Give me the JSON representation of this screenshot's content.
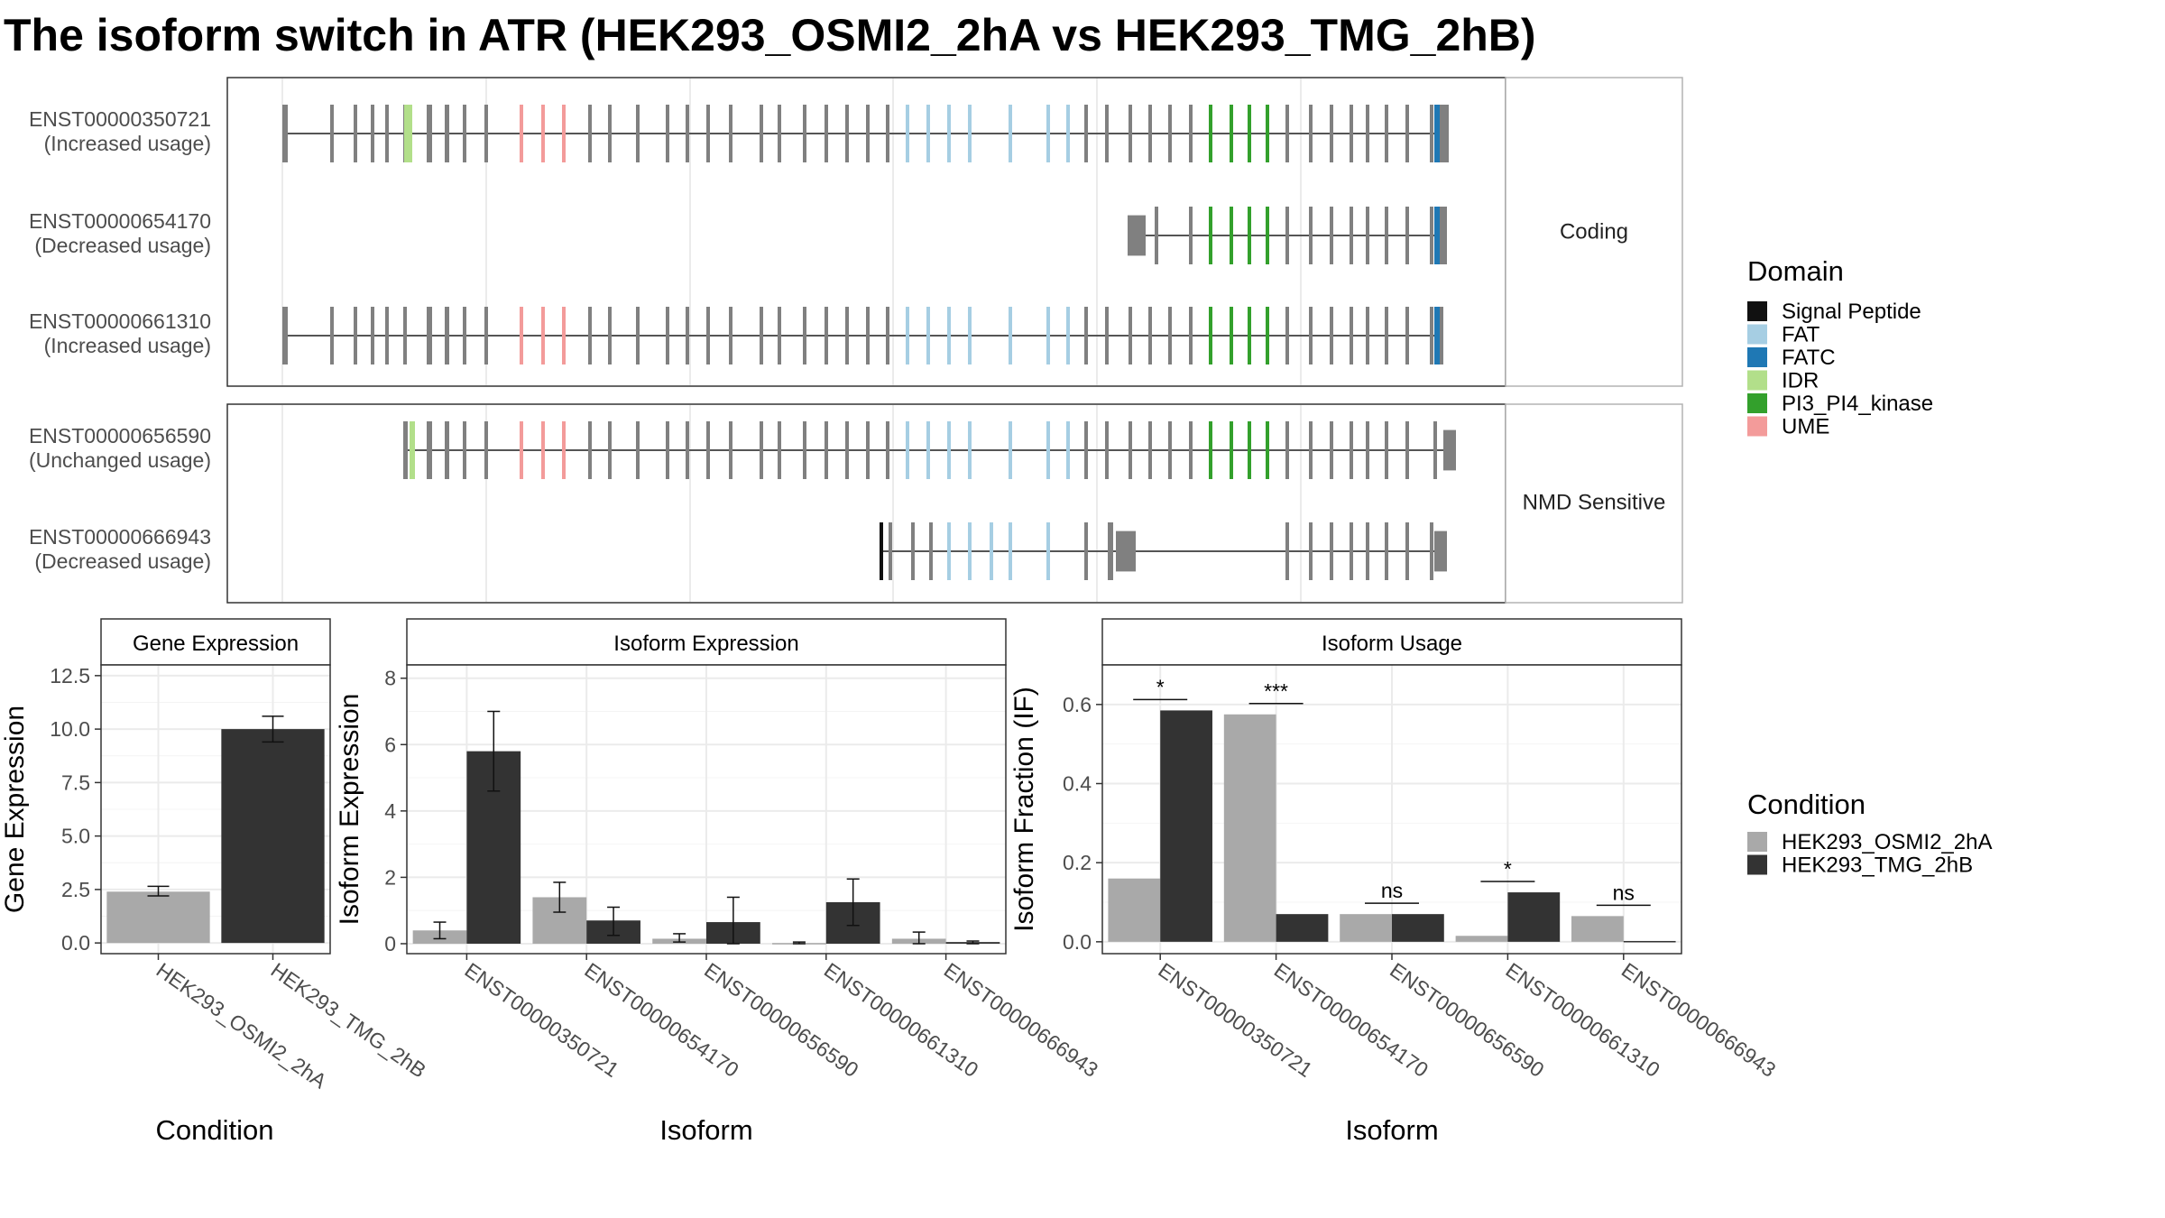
{
  "title": "The isoform switch in ATR (HEK293_OSMI2_2hA vs HEK293_TMG_2hB)",
  "colors": {
    "exon": "#808080",
    "intron": "#555555",
    "panel_border": "#333333",
    "strip_border": "#b3b3b3",
    "grid": "#ebebeb",
    "bar_a": "#a9a9a9",
    "bar_b": "#333333"
  },
  "structure": {
    "groups": [
      {
        "label": "Coding",
        "transcripts": [
          {
            "id": "ENST00000350721",
            "usage": "(Increased usage)"
          },
          {
            "id": "ENST00000654170",
            "usage": "(Decreased usage)"
          },
          {
            "id": "ENST00000661310",
            "usage": "(Increased usage)"
          }
        ]
      },
      {
        "label": "NMD Sensitive",
        "transcripts": [
          {
            "id": "ENST00000656590",
            "usage": "(Unchanged usage)"
          },
          {
            "id": "ENST00000666943",
            "usage": "(Decreased usage)"
          }
        ]
      }
    ]
  },
  "domain_legend": {
    "title": "Domain",
    "items": [
      {
        "label": "Signal Peptide",
        "color": "#111111"
      },
      {
        "label": "FAT",
        "color": "#a6cee3"
      },
      {
        "label": "FATC",
        "color": "#1f78b4"
      },
      {
        "label": "IDR",
        "color": "#b2df8a"
      },
      {
        "label": "PI3_PI4_kinase",
        "color": "#33a02c"
      },
      {
        "label": "UME",
        "color": "#f39b9a"
      }
    ]
  },
  "condition_legend": {
    "title": "Condition",
    "items": [
      {
        "label": "HEK293_OSMI2_2hA",
        "color": "#a9a9a9"
      },
      {
        "label": "HEK293_TMG_2hB",
        "color": "#333333"
      }
    ]
  },
  "chart_data": [
    {
      "type": "bar",
      "title": "Gene Expression",
      "xlabel": "Condition",
      "ylabel": "Gene Expression",
      "categories": [
        "HEK293_OSMI2_2hA",
        "HEK293_TMG_2hB"
      ],
      "values": [
        2.4,
        10.0
      ],
      "error": [
        [
          2.2,
          2.65
        ],
        [
          9.4,
          10.6
        ]
      ],
      "ylim": [
        -0.5,
        13.0
      ],
      "yticks": [
        0.0,
        2.5,
        5.0,
        7.5,
        10.0,
        12.5
      ],
      "ytick_labels": [
        "0.0",
        "2.5",
        "5.0",
        "7.5",
        "10.0",
        "12.5"
      ],
      "grid": true
    },
    {
      "type": "bar",
      "title": "Isoform Expression",
      "xlabel": "Isoform",
      "ylabel": "Isoform Expression",
      "categories": [
        "ENST00000350721",
        "ENST00000654170",
        "ENST00000656590",
        "ENST00000661310",
        "ENST00000666943"
      ],
      "series": [
        {
          "name": "HEK293_OSMI2_2hA",
          "values": [
            0.4,
            1.4,
            0.15,
            0.02,
            0.15
          ],
          "error": [
            [
              0.15,
              0.65
            ],
            [
              0.95,
              1.85
            ],
            [
              0.05,
              0.3
            ],
            [
              0.0,
              0.05
            ],
            [
              0.0,
              0.35
            ]
          ]
        },
        {
          "name": "HEK293_TMG_2hB",
          "values": [
            5.8,
            0.7,
            0.65,
            1.25,
            0.05
          ],
          "error": [
            [
              4.6,
              7.0
            ],
            [
              0.25,
              1.1
            ],
            [
              0.0,
              1.4
            ],
            [
              0.55,
              1.95
            ],
            [
              0.0,
              0.08
            ]
          ]
        }
      ],
      "ylim": [
        -0.3,
        8.4
      ],
      "yticks": [
        0,
        2,
        4,
        6,
        8
      ],
      "ytick_labels": [
        "0",
        "2",
        "4",
        "6",
        "8"
      ],
      "grid": true
    },
    {
      "type": "bar",
      "title": "Isoform Usage",
      "xlabel": "Isoform",
      "ylabel": "Isoform Fraction (IF)",
      "categories": [
        "ENST00000350721",
        "ENST00000654170",
        "ENST00000656590",
        "ENST00000661310",
        "ENST00000666943"
      ],
      "series": [
        {
          "name": "HEK293_OSMI2_2hA",
          "values": [
            0.16,
            0.575,
            0.07,
            0.015,
            0.065
          ]
        },
        {
          "name": "HEK293_TMG_2hB",
          "values": [
            0.585,
            0.07,
            0.07,
            0.125,
            0.002
          ]
        }
      ],
      "significance": [
        "*",
        "***",
        "ns",
        "*",
        "ns"
      ],
      "ylim": [
        -0.03,
        0.7
      ],
      "yticks": [
        0.0,
        0.2,
        0.4,
        0.6
      ],
      "ytick_labels": [
        "0.0",
        "0.2",
        "0.4",
        "0.6"
      ],
      "grid": true
    }
  ]
}
